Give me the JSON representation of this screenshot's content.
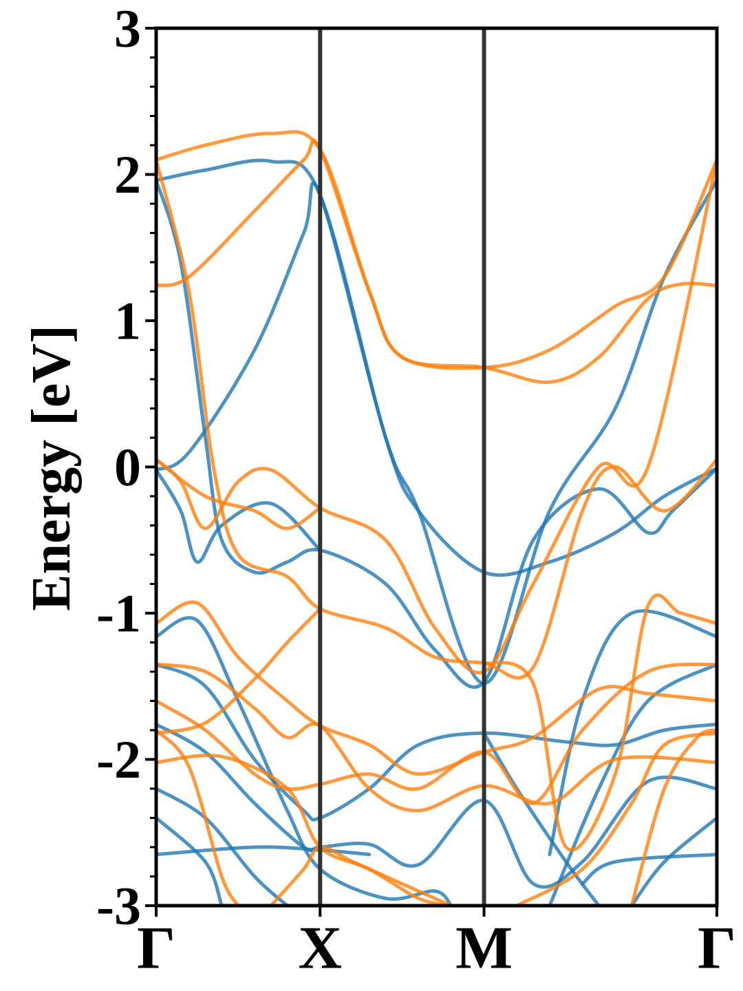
{
  "chart_data": {
    "type": "line",
    "title": "",
    "xlabel": "",
    "ylabel": "Energy [eV]",
    "ylim": [
      -3,
      3
    ],
    "xlim": [
      0,
      3.42
    ],
    "yticks": [
      {
        "value": -3,
        "label": "-3"
      },
      {
        "value": -2,
        "label": "-2"
      },
      {
        "value": -1,
        "label": "-1"
      },
      {
        "value": 0,
        "label": "0"
      },
      {
        "value": 1,
        "label": "1"
      },
      {
        "value": 2,
        "label": "2"
      },
      {
        "value": 3,
        "label": "3"
      }
    ],
    "yminor_step": 0.2,
    "xticks": [
      {
        "value": 0,
        "label": "Γ"
      },
      {
        "value": 1.0,
        "label": "X"
      },
      {
        "value": 2.0,
        "label": "M"
      },
      {
        "value": 3.42,
        "label": "Γ"
      }
    ],
    "vlines": [
      1.0,
      2.0
    ],
    "colors": {
      "blue": "#1f77b4",
      "orange": "#ff7f0e",
      "vline": "#333333",
      "axes": "#000000"
    },
    "grid": false,
    "series": [
      {
        "color": "#1f77b4",
        "points": [
          [
            0,
            1.96
          ],
          [
            0.3,
            2.03
          ],
          [
            0.7,
            2.09
          ],
          [
            1.0,
            1.86
          ],
          [
            1.4,
            0.2
          ],
          [
            1.6,
            -0.3
          ],
          [
            2.0,
            -0.72
          ],
          [
            2.4,
            -0.65
          ],
          [
            2.8,
            -0.45
          ],
          [
            3.1,
            -0.2
          ],
          [
            3.42,
            -0.01
          ]
        ]
      },
      {
        "color": "#1f77b4",
        "points": [
          [
            0,
            -0.02
          ],
          [
            0.2,
            0.1
          ],
          [
            0.6,
            0.8
          ],
          [
            0.9,
            1.6
          ],
          [
            1.0,
            1.86
          ],
          [
            1.4,
            0.2
          ],
          [
            1.6,
            -0.3
          ],
          [
            2.0,
            -1.48
          ],
          [
            2.4,
            -0.3
          ],
          [
            2.8,
            0.4
          ],
          [
            3.1,
            1.3
          ],
          [
            3.42,
            1.96
          ]
        ]
      },
      {
        "color": "#1f77b4",
        "points": [
          [
            0,
            1.96
          ],
          [
            0.15,
            1.4
          ],
          [
            0.3,
            0.2
          ],
          [
            0.4,
            -0.5
          ],
          [
            0.6,
            -0.72
          ],
          [
            0.8,
            -0.65
          ],
          [
            1.0,
            -0.57
          ],
          [
            1.4,
            -0.8
          ],
          [
            1.7,
            -1.25
          ],
          [
            2.0,
            -1.47
          ],
          [
            2.3,
            -0.5
          ],
          [
            2.7,
            -0.15
          ],
          [
            3.0,
            -0.45
          ],
          [
            3.15,
            -0.3
          ],
          [
            3.42,
            -0.01
          ]
        ]
      },
      {
        "color": "#1f77b4",
        "points": [
          [
            0,
            -0.02
          ],
          [
            0.15,
            -0.3
          ],
          [
            0.25,
            -0.65
          ],
          [
            0.4,
            -0.4
          ],
          [
            0.7,
            -0.25
          ],
          [
            1.0,
            -0.57
          ]
        ]
      },
      {
        "color": "#1f77b4",
        "points": [
          [
            0,
            -1.16
          ],
          [
            0.25,
            -1.05
          ],
          [
            0.5,
            -1.6
          ],
          [
            0.8,
            -2.35
          ],
          [
            1.0,
            -2.75
          ],
          [
            1.4,
            -2.95
          ],
          [
            1.7,
            -2.9
          ],
          [
            1.8,
            -3.0
          ]
        ]
      },
      {
        "color": "#1f77b4",
        "points": [
          [
            0,
            -1.35
          ],
          [
            0.3,
            -1.5
          ],
          [
            0.6,
            -2.0
          ],
          [
            0.9,
            -2.35
          ],
          [
            1.0,
            -2.4
          ],
          [
            1.3,
            -2.2
          ],
          [
            1.6,
            -1.9
          ],
          [
            2.0,
            -1.82
          ],
          [
            2.5,
            -1.88
          ],
          [
            2.8,
            -1.9
          ],
          [
            3.1,
            -1.8
          ],
          [
            3.42,
            -1.76
          ]
        ]
      },
      {
        "color": "#1f77b4",
        "points": [
          [
            0,
            -1.76
          ],
          [
            0.3,
            -1.95
          ],
          [
            0.6,
            -2.3
          ],
          [
            0.9,
            -2.6
          ],
          [
            1.0,
            -2.6
          ],
          [
            1.3,
            -2.58
          ],
          [
            1.6,
            -2.72
          ],
          [
            2.0,
            -2.28
          ],
          [
            2.3,
            -2.85
          ],
          [
            2.6,
            -2.7
          ],
          [
            3.0,
            -2.15
          ],
          [
            3.42,
            -2.2
          ]
        ]
      },
      {
        "color": "#1f77b4",
        "points": [
          [
            0,
            -2.2
          ],
          [
            0.3,
            -2.4
          ],
          [
            0.6,
            -2.8
          ],
          [
            0.8,
            -3.0
          ]
        ]
      },
      {
        "color": "#1f77b4",
        "points": [
          [
            0,
            -2.65
          ],
          [
            0.6,
            -2.6
          ],
          [
            1.0,
            -2.62
          ],
          [
            1.3,
            -2.65
          ]
        ]
      },
      {
        "color": "#1f77b4",
        "points": [
          [
            0,
            -2.4
          ],
          [
            0.3,
            -2.7
          ],
          [
            0.4,
            -3.0
          ]
        ]
      },
      {
        "color": "#1f77b4",
        "points": [
          [
            2.0,
            -1.82
          ],
          [
            2.2,
            -2.2
          ],
          [
            2.5,
            -2.7
          ],
          [
            2.7,
            -3.0
          ]
        ]
      },
      {
        "color": "#1f77b4",
        "points": [
          [
            2.9,
            -3.0
          ],
          [
            3.1,
            -2.7
          ],
          [
            3.42,
            -2.4
          ]
        ]
      },
      {
        "color": "#1f77b4",
        "points": [
          [
            2.6,
            -2.85
          ],
          [
            2.8,
            -2.7
          ],
          [
            3.42,
            -2.65
          ]
        ]
      },
      {
        "color": "#1f77b4",
        "points": [
          [
            2.4,
            -2.65
          ],
          [
            2.6,
            -1.6
          ],
          [
            2.9,
            -1.0
          ],
          [
            3.42,
            -1.16
          ]
        ]
      },
      {
        "color": "#1f77b4",
        "points": [
          [
            2.4,
            -3.0
          ],
          [
            2.7,
            -2.2
          ],
          [
            3.0,
            -1.6
          ],
          [
            3.42,
            -1.35
          ]
        ]
      },
      {
        "color": "#ff7f0e",
        "points": [
          [
            0,
            2.1
          ],
          [
            0.3,
            2.2
          ],
          [
            0.7,
            2.28
          ],
          [
            1.0,
            2.17
          ],
          [
            1.3,
            1.2
          ],
          [
            1.5,
            0.75
          ],
          [
            2.0,
            0.68
          ],
          [
            2.4,
            0.58
          ],
          [
            2.7,
            0.75
          ],
          [
            3.0,
            1.15
          ],
          [
            3.2,
            1.25
          ],
          [
            3.42,
            1.24
          ]
        ]
      },
      {
        "color": "#ff7f0e",
        "points": [
          [
            0,
            1.24
          ],
          [
            0.2,
            1.3
          ],
          [
            0.6,
            1.75
          ],
          [
            0.9,
            2.1
          ],
          [
            1.0,
            2.17
          ],
          [
            1.3,
            1.2
          ],
          [
            1.5,
            0.75
          ],
          [
            2.0,
            0.68
          ],
          [
            2.4,
            0.8
          ],
          [
            2.8,
            1.1
          ],
          [
            3.1,
            1.3
          ],
          [
            3.42,
            2.1
          ]
        ]
      },
      {
        "color": "#ff7f0e",
        "points": [
          [
            0,
            2.1
          ],
          [
            0.2,
            1.2
          ],
          [
            0.35,
            0.0
          ],
          [
            0.5,
            -0.6
          ],
          [
            0.8,
            -0.75
          ],
          [
            1.0,
            -0.97
          ],
          [
            1.4,
            -1.1
          ],
          [
            1.7,
            -1.3
          ],
          [
            2.0,
            -1.34
          ],
          [
            2.3,
            -1.37
          ],
          [
            2.6,
            -0.3
          ],
          [
            2.8,
            0.0
          ],
          [
            3.1,
            -0.3
          ],
          [
            3.42,
            0.05
          ]
        ]
      },
      {
        "color": "#ff7f0e",
        "points": [
          [
            0,
            0.05
          ],
          [
            0.15,
            -0.1
          ],
          [
            0.3,
            -0.42
          ],
          [
            0.5,
            -0.1
          ],
          [
            0.7,
            -0.02
          ],
          [
            1.0,
            -0.28
          ],
          [
            1.4,
            -0.5
          ],
          [
            1.7,
            -1.1
          ],
          [
            2.0,
            -1.4
          ],
          [
            2.3,
            -0.8
          ],
          [
            2.7,
            0.0
          ],
          [
            3.0,
            0.0
          ],
          [
            3.42,
            2.1
          ]
        ]
      },
      {
        "color": "#ff7f0e",
        "points": [
          [
            0,
            0.05
          ],
          [
            0.3,
            -0.2
          ],
          [
            0.6,
            -0.3
          ],
          [
            0.8,
            -0.42
          ],
          [
            1.0,
            -0.28
          ]
        ]
      },
      {
        "color": "#ff7f0e",
        "points": [
          [
            0,
            -1.07
          ],
          [
            0.25,
            -0.93
          ],
          [
            0.5,
            -1.3
          ],
          [
            0.8,
            -1.6
          ],
          [
            1.0,
            -1.77
          ],
          [
            1.3,
            -1.9
          ],
          [
            1.6,
            -2.1
          ],
          [
            2.0,
            -1.95
          ],
          [
            2.3,
            -1.85
          ],
          [
            2.7,
            -1.52
          ],
          [
            3.0,
            -1.55
          ],
          [
            3.42,
            -1.6
          ]
        ]
      },
      {
        "color": "#ff7f0e",
        "points": [
          [
            0,
            -1.35
          ],
          [
            0.3,
            -1.4
          ],
          [
            0.6,
            -1.65
          ],
          [
            0.8,
            -1.85
          ],
          [
            1.0,
            -1.77
          ],
          [
            1.3,
            -2.2
          ],
          [
            1.6,
            -2.35
          ],
          [
            2.0,
            -2.18
          ],
          [
            2.4,
            -2.3
          ],
          [
            2.8,
            -2.0
          ],
          [
            3.42,
            -2.02
          ]
        ]
      },
      {
        "color": "#ff7f0e",
        "points": [
          [
            0,
            -1.6
          ],
          [
            0.3,
            -1.8
          ],
          [
            0.6,
            -2.1
          ],
          [
            0.8,
            -2.2
          ],
          [
            1.0,
            -2.17
          ],
          [
            1.3,
            -2.1
          ],
          [
            1.6,
            -2.2
          ],
          [
            2.0,
            -1.95
          ],
          [
            2.3,
            -2.3
          ],
          [
            2.6,
            -1.8
          ],
          [
            3.0,
            -1.4
          ],
          [
            3.42,
            -1.35
          ]
        ]
      },
      {
        "color": "#ff7f0e",
        "points": [
          [
            0,
            -1.82
          ],
          [
            0.3,
            -1.75
          ],
          [
            0.6,
            -1.45
          ],
          [
            0.8,
            -1.2
          ],
          [
            1.0,
            -0.97
          ]
        ]
      },
      {
        "color": "#ff7f0e",
        "points": [
          [
            0,
            -1.8
          ],
          [
            0.2,
            -2.05
          ],
          [
            0.4,
            -2.8
          ],
          [
            0.5,
            -3.0
          ]
        ]
      },
      {
        "color": "#ff7f0e",
        "points": [
          [
            0,
            -2.02
          ],
          [
            0.4,
            -1.98
          ],
          [
            0.8,
            -2.2
          ],
          [
            1.0,
            -2.6
          ],
          [
            1.3,
            -2.75
          ],
          [
            1.6,
            -2.95
          ],
          [
            1.8,
            -3.0
          ]
        ]
      },
      {
        "color": "#ff7f0e",
        "points": [
          [
            0.7,
            -3.0
          ],
          [
            0.9,
            -2.75
          ],
          [
            1.0,
            -2.6
          ],
          [
            1.2,
            -2.7
          ],
          [
            1.5,
            -2.85
          ],
          [
            1.8,
            -3.0
          ]
        ]
      },
      {
        "color": "#ff7f0e",
        "points": [
          [
            2.0,
            -1.34
          ],
          [
            2.3,
            -1.48
          ],
          [
            2.5,
            -2.6
          ],
          [
            2.8,
            -2.1
          ],
          [
            3.0,
            -0.95
          ],
          [
            3.2,
            -1.0
          ],
          [
            3.42,
            -1.07
          ]
        ]
      },
      {
        "color": "#ff7f0e",
        "points": [
          [
            2.2,
            -3.0
          ],
          [
            2.6,
            -2.75
          ],
          [
            2.9,
            -2.3
          ],
          [
            3.1,
            -1.9
          ],
          [
            3.42,
            -1.82
          ]
        ]
      },
      {
        "color": "#ff7f0e",
        "points": [
          [
            2.9,
            -3.0
          ],
          [
            3.1,
            -2.2
          ],
          [
            3.3,
            -1.85
          ],
          [
            3.42,
            -1.8
          ]
        ]
      }
    ]
  }
}
